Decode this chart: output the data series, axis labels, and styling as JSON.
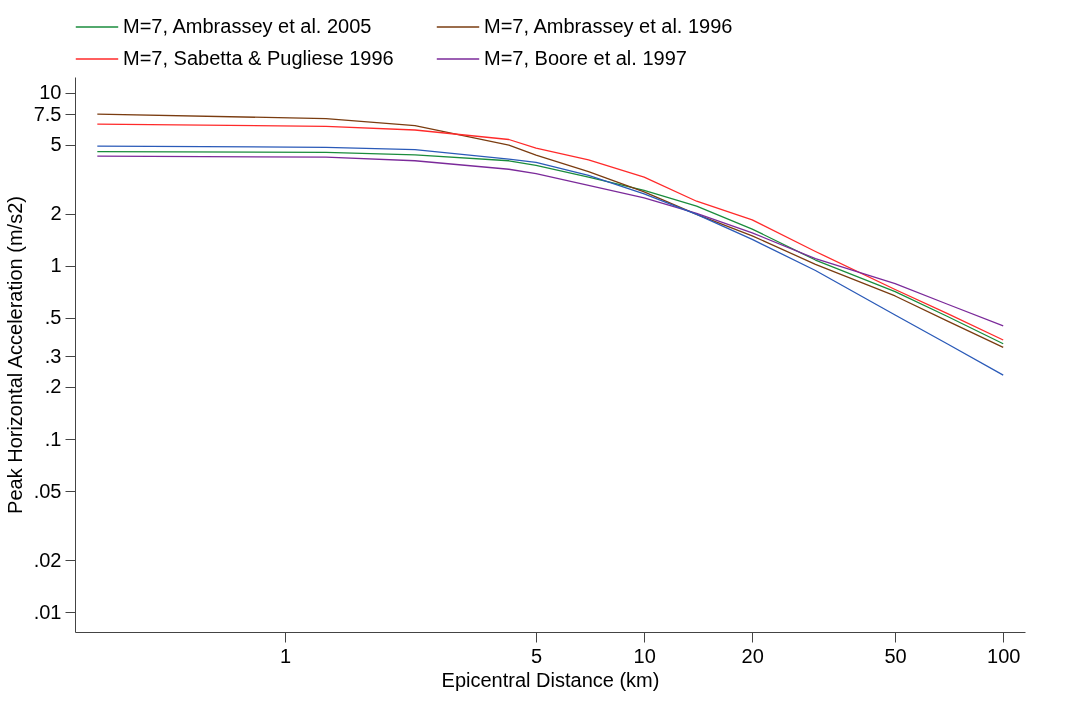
{
  "chart_data": {
    "type": "line",
    "xlabel": "Epicentral Distance (km)",
    "ylabel": "Peak Horizontal Acceleration (m/s2)",
    "log": "xy",
    "grid": false,
    "legend": "top",
    "marker": "none",
    "line_style": "solid",
    "xlim": [
      0.26,
      115
    ],
    "ylim": [
      0.0077,
      12.3
    ],
    "xticks": [
      1,
      5,
      10,
      20,
      50,
      100
    ],
    "yticks": [
      10,
      7.5,
      5,
      2,
      1,
      {
        "value": 0.5,
        "label": ".5"
      },
      {
        "value": 0.3,
        "label": ".3"
      },
      {
        "value": 0.2,
        "label": ".2"
      },
      {
        "value": 0.1,
        "label": ".1"
      },
      {
        "value": 0.05,
        "label": ".05"
      },
      {
        "value": 0.02,
        "label": ".02"
      },
      {
        "value": 0.01,
        "label": ".01"
      }
    ],
    "x": [
      0.3,
      1.3,
      2.3,
      4.2,
      5,
      7,
      10,
      14,
      20,
      30,
      50,
      70,
      100
    ],
    "series": [
      {
        "name": "M=7, Ambrassey et al. 2005",
        "color": "#1a8c3c",
        "values": [
          4.56,
          4.52,
          4.37,
          4.04,
          3.8,
          3.25,
          2.73,
          2.21,
          1.63,
          1.08,
          0.71,
          0.51,
          0.355
        ]
      },
      {
        "name": "M=7, Ambrassey et al. 1996",
        "color": "#7a3c10",
        "values": [
          7.5,
          7.08,
          6.44,
          4.98,
          4.36,
          3.5,
          2.67,
          1.98,
          1.49,
          1.02,
          0.67,
          0.48,
          0.338
        ]
      },
      {
        "name": "M=7, Sabetta & Pugliese 1996",
        "color": "#ff2a2a",
        "values": [
          6.58,
          6.38,
          6.08,
          5.36,
          4.78,
          4.09,
          3.25,
          2.36,
          1.84,
          1.21,
          0.73,
          0.53,
          0.373
        ]
      },
      {
        "name": "M=7, Boore et al. 1997",
        "color": "#7b2a9a",
        "values": [
          4.3,
          4.24,
          4.04,
          3.61,
          3.41,
          2.91,
          2.47,
          2.01,
          1.55,
          1.1,
          0.79,
          0.6,
          0.45
        ]
      },
      {
        "color": "#2a5ab8",
        "values": [
          4.91,
          4.83,
          4.68,
          4.13,
          3.96,
          3.33,
          2.6,
          1.98,
          1.42,
          0.94,
          0.52,
          0.354,
          0.234
        ]
      }
    ]
  }
}
